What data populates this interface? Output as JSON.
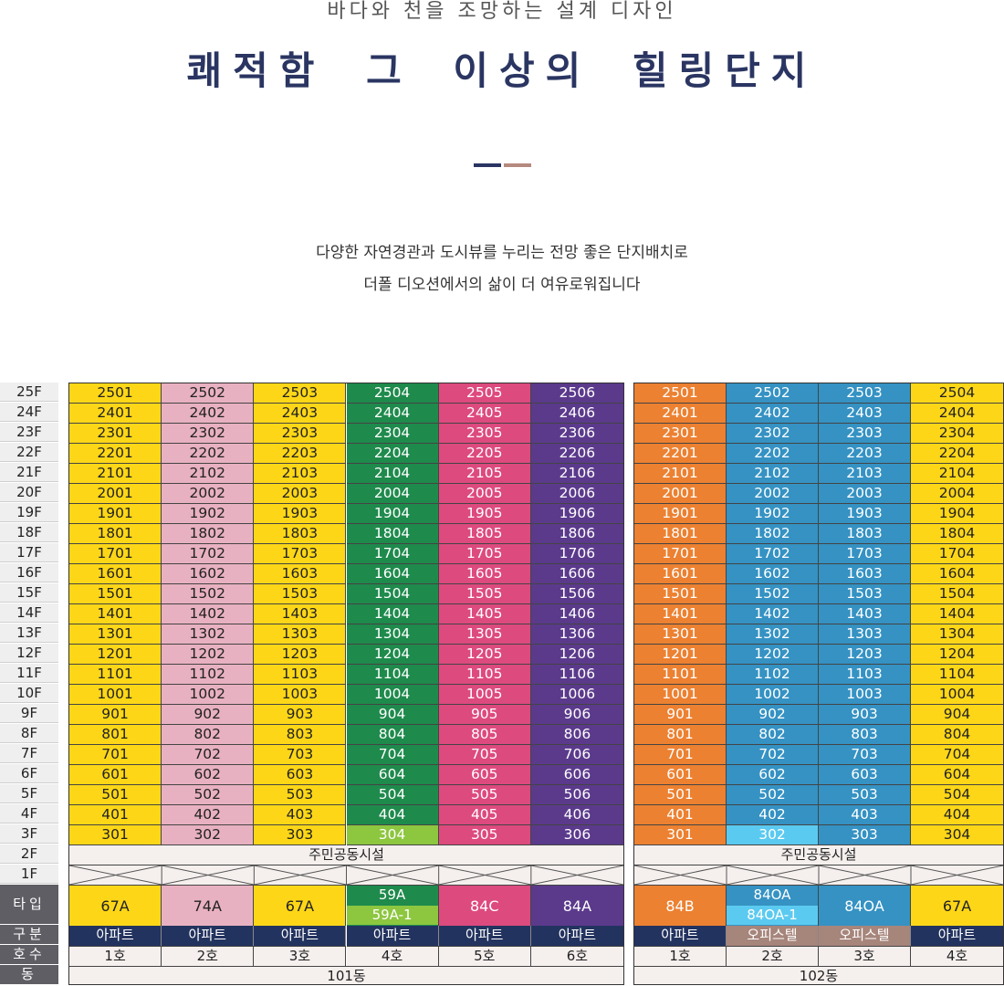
{
  "header": {
    "subtitle": "바다와 천을 조망하는 설계 디자인",
    "title": "쾌적함 그 이상의 힐링단지",
    "desc1": "다양한 자연경관과 도시뷰를 누리는 전망 좋은 단지배치로",
    "desc2": "더폴 디오션에서의 삶이 더 여유로워집니다"
  },
  "floors": [
    "25F",
    "24F",
    "23F",
    "22F",
    "21F",
    "20F",
    "19F",
    "18F",
    "17F",
    "16F",
    "15F",
    "14F",
    "13F",
    "12F",
    "11F",
    "10F",
    "9F",
    "8F",
    "7F",
    "6F",
    "5F",
    "4F",
    "3F",
    "2F",
    "1F"
  ],
  "labels": {
    "type": "타입",
    "gubun": "구분",
    "hosu": "호수",
    "dong": "동"
  },
  "colors": {
    "yellow": "#fdd717",
    "pink": "#e8b1c1",
    "green": "#1e8a4c",
    "lightgreen": "#8dc63f",
    "magenta": "#dd4a7e",
    "purple": "#5b3a8c",
    "orange": "#ec8131",
    "blue": "#3592c3",
    "lightblue": "#5bcaf0",
    "navy": "#23335f",
    "taupe": "#a6857b"
  },
  "buildings": [
    {
      "name": "101동",
      "facility": "주민공동시설",
      "columns": [
        {
          "unit": 1,
          "color": "yellow",
          "color3f": "yellow",
          "type": "67A",
          "gubun": "아파트",
          "gubunColor": "navy",
          "hosu": "1호"
        },
        {
          "unit": 2,
          "color": "pink",
          "color3f": "pink",
          "type": "74A",
          "gubun": "아파트",
          "gubunColor": "navy",
          "hosu": "2호"
        },
        {
          "unit": 3,
          "color": "yellow",
          "color3f": "yellow",
          "type": "67A",
          "gubun": "아파트",
          "gubunColor": "navy",
          "hosu": "3호"
        },
        {
          "unit": 4,
          "color": "green",
          "color3f": "lightgreen",
          "type": "59A",
          "type2": "59A-1",
          "type2Color": "lightgreen",
          "gubun": "아파트",
          "gubunColor": "navy",
          "hosu": "4호"
        },
        {
          "unit": 5,
          "color": "magenta",
          "color3f": "magenta",
          "type": "84C",
          "gubun": "아파트",
          "gubunColor": "navy",
          "hosu": "5호"
        },
        {
          "unit": 6,
          "color": "purple",
          "color3f": "purple",
          "type": "84A",
          "gubun": "아파트",
          "gubunColor": "navy",
          "hosu": "6호"
        }
      ]
    },
    {
      "name": "102동",
      "facility": "주민공동시설",
      "columns": [
        {
          "unit": 1,
          "color": "orange",
          "color3f": "orange",
          "type": "84B",
          "gubun": "아파트",
          "gubunColor": "navy",
          "hosu": "1호"
        },
        {
          "unit": 2,
          "color": "blue",
          "color3f": "lightblue",
          "type": "84OA",
          "type2": "84OA-1",
          "type2Color": "lightblue",
          "gubun": "오피스텔",
          "gubunColor": "taupe",
          "hosu": "2호"
        },
        {
          "unit": 3,
          "color": "blue",
          "color3f": "blue",
          "type": "84OA",
          "gubun": "오피스텔",
          "gubunColor": "taupe",
          "hosu": "3호"
        },
        {
          "unit": 4,
          "color": "yellow",
          "color3f": "yellow",
          "type": "67A",
          "gubun": "아파트",
          "gubunColor": "navy",
          "hosu": "4호"
        }
      ]
    }
  ]
}
